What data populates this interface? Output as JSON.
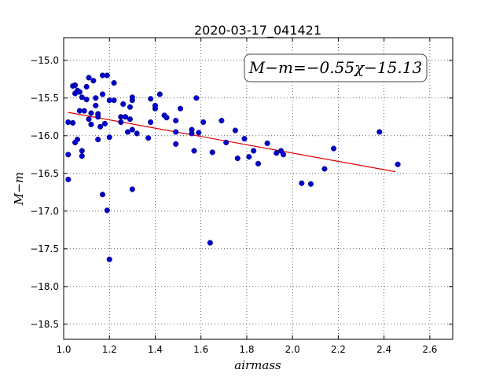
{
  "chart_data": {
    "type": "scatter",
    "title": "2020-03-17_041421",
    "xlabel": "airmass",
    "ylabel": "M−m",
    "xlim": [
      1.0,
      2.7
    ],
    "ylim": [
      -18.7,
      -14.7
    ],
    "y_inverted": true,
    "grid": true,
    "xticks": [
      1.0,
      1.2,
      1.4,
      1.6,
      1.8,
      2.0,
      2.2,
      2.4,
      2.6
    ],
    "xtick_labels": [
      "1.0",
      "1.2",
      "1.4",
      "1.6",
      "1.8",
      "2.0",
      "2.2",
      "2.4",
      "2.6"
    ],
    "yticks": [
      -15.0,
      -15.5,
      -16.0,
      -16.5,
      -17.0,
      -17.5,
      -18.0,
      -18.5
    ],
    "ytick_labels": [
      "−15.0",
      "−15.5",
      "−16.0",
      "−16.5",
      "−17.0",
      "−17.5",
      "−18.0",
      "−18.5"
    ],
    "annotation": "M−m=−0.55χ−15.13",
    "point_color": "#0000cc",
    "fit_color": "#dd0000",
    "series": [
      {
        "kind": "points",
        "points": [
          [
            1.02,
            -15.82
          ],
          [
            1.02,
            -16.25
          ],
          [
            1.02,
            -16.58
          ],
          [
            1.04,
            -15.34
          ],
          [
            1.04,
            -15.83
          ],
          [
            1.05,
            -15.33
          ],
          [
            1.05,
            -15.44
          ],
          [
            1.05,
            -16.09
          ],
          [
            1.06,
            -15.4
          ],
          [
            1.06,
            -16.05
          ],
          [
            1.07,
            -15.42
          ],
          [
            1.07,
            -15.67
          ],
          [
            1.08,
            -15.49
          ],
          [
            1.08,
            -16.2
          ],
          [
            1.08,
            -16.27
          ],
          [
            1.09,
            -15.67
          ],
          [
            1.1,
            -15.35
          ],
          [
            1.1,
            -15.52
          ],
          [
            1.11,
            -15.78
          ],
          [
            1.11,
            -15.23
          ],
          [
            1.12,
            -15.7
          ],
          [
            1.12,
            -15.85
          ],
          [
            1.13,
            -15.27
          ],
          [
            1.14,
            -15.6
          ],
          [
            1.14,
            -15.5
          ],
          [
            1.15,
            -15.71
          ],
          [
            1.15,
            -15.75
          ],
          [
            1.15,
            -16.05
          ],
          [
            1.16,
            -15.88
          ],
          [
            1.17,
            -15.45
          ],
          [
            1.17,
            -16.78
          ],
          [
            1.17,
            -15.2
          ],
          [
            1.18,
            -15.84
          ],
          [
            1.19,
            -15.2
          ],
          [
            1.19,
            -16.99
          ],
          [
            1.2,
            -17.64
          ],
          [
            1.2,
            -15.53
          ],
          [
            1.2,
            -16.02
          ],
          [
            1.22,
            -15.3
          ],
          [
            1.22,
            -15.53
          ],
          [
            1.25,
            -15.75
          ],
          [
            1.25,
            -15.82
          ],
          [
            1.26,
            -15.58
          ],
          [
            1.27,
            -15.75
          ],
          [
            1.28,
            -15.95
          ],
          [
            1.29,
            -15.62
          ],
          [
            1.29,
            -15.78
          ],
          [
            1.3,
            -15.53
          ],
          [
            1.3,
            -15.49
          ],
          [
            1.3,
            -15.92
          ],
          [
            1.3,
            -16.71
          ],
          [
            1.32,
            -15.97
          ],
          [
            1.37,
            -16.03
          ],
          [
            1.38,
            -15.51
          ],
          [
            1.38,
            -15.82
          ],
          [
            1.4,
            -15.64
          ],
          [
            1.4,
            -15.6
          ],
          [
            1.42,
            -15.45
          ],
          [
            1.44,
            -15.73
          ],
          [
            1.45,
            -15.76
          ],
          [
            1.49,
            -15.8
          ],
          [
            1.49,
            -15.95
          ],
          [
            1.49,
            -16.11
          ],
          [
            1.51,
            -15.64
          ],
          [
            1.56,
            -15.92
          ],
          [
            1.56,
            -15.97
          ],
          [
            1.57,
            -16.2
          ],
          [
            1.58,
            -15.5
          ],
          [
            1.59,
            -15.96
          ],
          [
            1.61,
            -15.82
          ],
          [
            1.64,
            -17.42
          ],
          [
            1.65,
            -16.22
          ],
          [
            1.69,
            -15.8
          ],
          [
            1.71,
            -16.09
          ],
          [
            1.75,
            -15.93
          ],
          [
            1.76,
            -16.3
          ],
          [
            1.79,
            -16.04
          ],
          [
            1.81,
            -16.28
          ],
          [
            1.83,
            -16.2
          ],
          [
            1.85,
            -16.37
          ],
          [
            1.89,
            -16.1
          ],
          [
            1.93,
            -16.23
          ],
          [
            1.95,
            -16.2
          ],
          [
            1.96,
            -16.25
          ],
          [
            2.04,
            -16.63
          ],
          [
            2.08,
            -16.64
          ],
          [
            2.14,
            -16.44
          ],
          [
            2.18,
            -16.17
          ],
          [
            2.38,
            -15.95
          ],
          [
            2.46,
            -16.38
          ]
        ]
      },
      {
        "kind": "fit-line",
        "slope": -0.55,
        "intercept": -15.13,
        "x_range": [
          1.02,
          2.45
        ]
      }
    ]
  }
}
